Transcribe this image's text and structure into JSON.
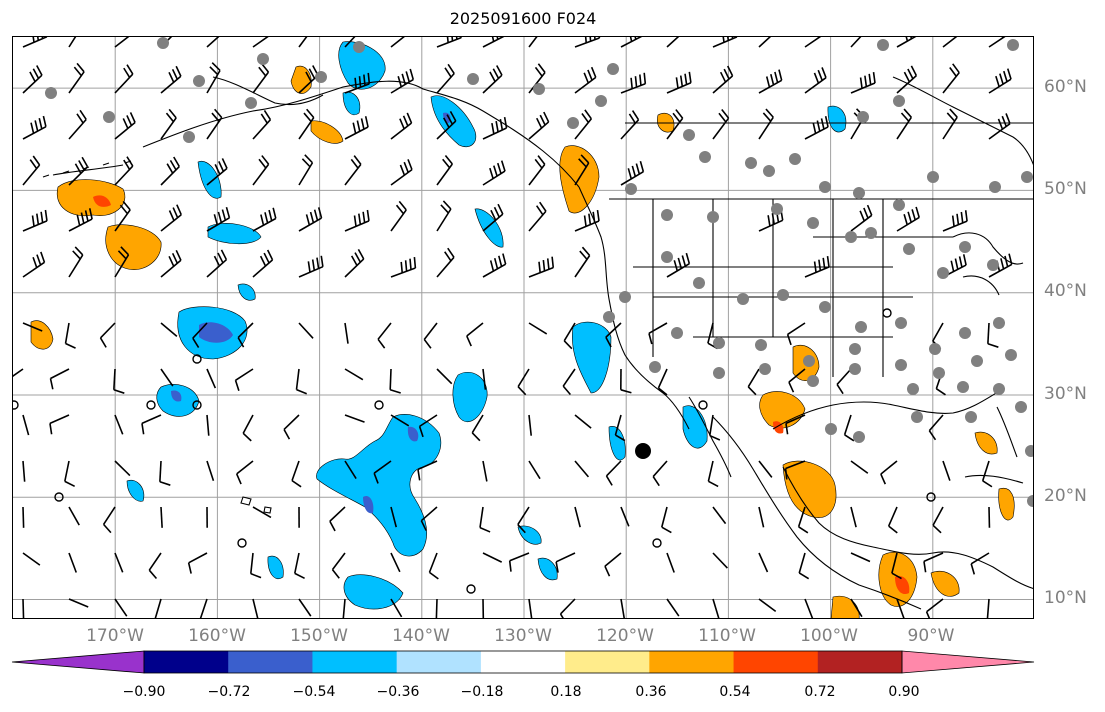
{
  "title": "2025091600 F024",
  "map": {
    "lon_range": [
      -180,
      -80
    ],
    "lat_range": [
      8,
      65
    ],
    "lon_labels": [
      "170°W",
      "160°W",
      "150°W",
      "140°W",
      "130°W",
      "120°W",
      "110°W",
      "100°W",
      "90°W"
    ],
    "lat_labels": [
      "10°N",
      "20°N",
      "30°N",
      "40°N",
      "50°N",
      "60°N"
    ],
    "gridlines": true,
    "colors": {
      "coast": "#000000",
      "grid": "#a0a0a0",
      "barb": "#000000",
      "station": "#808080"
    }
  },
  "colorbar": {
    "ticks": [
      "−0.90",
      "−0.72",
      "−0.54",
      "−0.36",
      "−0.18",
      "0.18",
      "0.36",
      "0.54",
      "0.72",
      "0.90"
    ],
    "colors": [
      "#9932cc",
      "#00008b",
      "#3a5fcd",
      "#00bfff",
      "#b0e2ff",
      "#ffffff",
      "#ffec8b",
      "#ffa500",
      "#ff4500",
      "#b22222",
      "#ff88aa"
    ],
    "extend": "both"
  }
}
